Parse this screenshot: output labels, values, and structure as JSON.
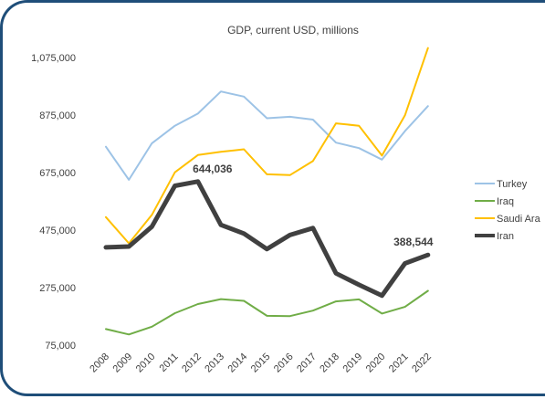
{
  "chart_data": {
    "type": "line",
    "title": "GDP, current USD, millions",
    "xlabel": "",
    "ylabel": "",
    "categories": [
      "2008",
      "2009",
      "2010",
      "2011",
      "2012",
      "2013",
      "2014",
      "2015",
      "2016",
      "2017",
      "2018",
      "2019",
      "2020",
      "2021",
      "2022"
    ],
    "ylim": [
      75000,
      1075000
    ],
    "yticks": [
      "1,075,000",
      "875,000",
      "675,000",
      "475,000",
      "275,000",
      "75,000"
    ],
    "ytick_values": [
      1075000,
      875000,
      675000,
      475000,
      275000,
      75000
    ],
    "grid": false,
    "legend_position": "right",
    "series": [
      {
        "name": "Turkey",
        "color": "#9dc3e6",
        "width": 2,
        "values": [
          765000,
          650000,
          777000,
          838000,
          880000,
          957000,
          939000,
          864000,
          869000,
          859000,
          779000,
          760000,
          720000,
          819000,
          906000
        ]
      },
      {
        "name": "Iraq",
        "color": "#70ad47",
        "width": 2,
        "values": [
          131000,
          112000,
          139000,
          186000,
          218000,
          235000,
          229000,
          177000,
          176000,
          195000,
          227000,
          234000,
          185000,
          208000,
          264000
        ]
      },
      {
        "name": "Saudi Arabia",
        "color": "#ffc000",
        "width": 2,
        "values": [
          520000,
          429000,
          528000,
          676000,
          736000,
          747000,
          756000,
          669000,
          666000,
          715000,
          846000,
          838000,
          734000,
          874000,
          1108000
        ]
      },
      {
        "name": "Iran",
        "color": "#404040",
        "width": 5,
        "values": [
          415000,
          418000,
          487000,
          629000,
          644036,
          493000,
          463000,
          409000,
          458000,
          482000,
          325000,
          285000,
          247000,
          359000,
          388544
        ]
      }
    ],
    "data_labels": [
      {
        "series": "Iran",
        "x": "2012",
        "text": "644,036"
      },
      {
        "series": "Iran",
        "x": "2022",
        "text": "388,544"
      }
    ],
    "legend_labels": [
      "Turkey",
      "Iraq",
      "Saudi Ara",
      "Iran"
    ]
  }
}
